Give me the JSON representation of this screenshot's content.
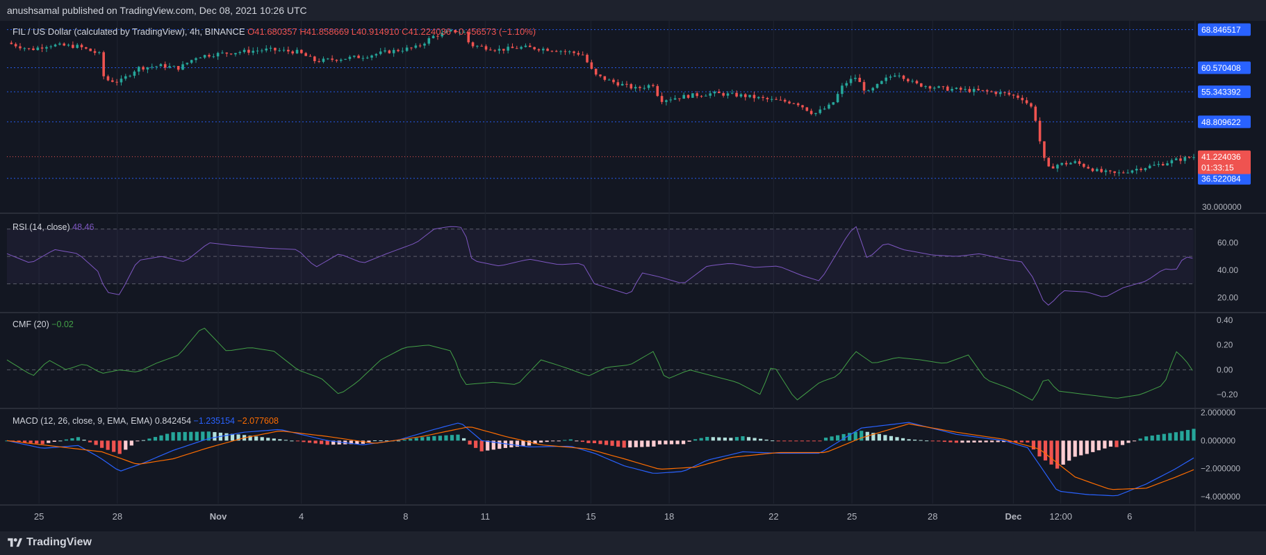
{
  "header": {
    "publisher_text": "anushsamal published on TradingView.com, Dec 08, 2021 10:26 UTC"
  },
  "footer": {
    "brand": "TradingView",
    "logo_icon": "tradingview-logo-icon"
  },
  "colors": {
    "bg": "#131722",
    "up": "#26a69a",
    "down": "#ef5350",
    "level_line": "#2962ff",
    "rsi": "#7e57c2",
    "cmf": "#43a047",
    "macd_line": "#2962ff",
    "signal_line": "#ff6d00"
  },
  "main": {
    "legend": {
      "symbol": "FIL / US Dollar (calculated by TradingView), 4h, BINANCE",
      "open": "O41.680357",
      "high": "H41.858669",
      "low": "L40.914910",
      "close": "C41.224036",
      "change": "−0.456573 (−1.10%)"
    },
    "currency": "USD",
    "price_tags": [
      {
        "label": "68.846517",
        "value": 68.846517,
        "color": "#2962ff"
      },
      {
        "label": "60.570408",
        "value": 60.570408,
        "color": "#2962ff"
      },
      {
        "label": "55.343392",
        "value": 55.343392,
        "color": "#2962ff"
      },
      {
        "label": "48.809622",
        "value": 48.809622,
        "color": "#2962ff"
      },
      {
        "label": "36.522084",
        "value": 36.522084,
        "color": "#2962ff"
      }
    ],
    "last_price": {
      "label": "41.224036",
      "countdown": "01:33:15",
      "value": 41.224036
    },
    "axis_ticks": [
      "30.000000"
    ]
  },
  "rsi": {
    "legend": "RSI (14, close)",
    "value": "48.46",
    "ticks": [
      "60.00",
      "40.00",
      "20.00"
    ]
  },
  "cmf": {
    "legend": "CMF (20)",
    "value": "−0.02",
    "ticks": [
      "0.40",
      "0.20",
      "0.00",
      "−0.20"
    ]
  },
  "macd": {
    "legend": "MACD (12, 26, close, 9, EMA, EMA)",
    "hist_value": "0.842454",
    "macd_value": "−1.235154",
    "signal_value": "−2.077608",
    "ticks": [
      "2.000000",
      "0.000000",
      "−2.000000",
      "−4.000000"
    ]
  },
  "x_axis": {
    "labels": [
      "25",
      "28",
      "Nov",
      "4",
      "8",
      "11",
      "15",
      "18",
      "22",
      "25",
      "28",
      "Dec",
      "12:00",
      "6"
    ],
    "bold": [
      "Nov",
      "Dec"
    ]
  },
  "chart_data": [
    {
      "type": "candlestick",
      "title": "FIL / US Dollar, 4h, BINANCE",
      "ylim": [
        30,
        70
      ],
      "x_start": "Oct 24",
      "x_end": "Dec 8",
      "close_path": [
        {
          "t": 0.0,
          "v": 66.0
        },
        {
          "t": 2.0,
          "v": 64.5
        },
        {
          "t": 3.5,
          "v": 65.5
        },
        {
          "t": 6.0,
          "v": 65.2
        },
        {
          "t": 7.8,
          "v": 63.5
        },
        {
          "t": 8.2,
          "v": 58.0
        },
        {
          "t": 9.5,
          "v": 57.5
        },
        {
          "t": 11.0,
          "v": 60.5
        },
        {
          "t": 13.0,
          "v": 61.0
        },
        {
          "t": 14.5,
          "v": 60.5
        },
        {
          "t": 16.0,
          "v": 63.0
        },
        {
          "t": 17.5,
          "v": 63.5
        },
        {
          "t": 19.5,
          "v": 64.0
        },
        {
          "t": 22.0,
          "v": 64.5
        },
        {
          "t": 24.5,
          "v": 64.0
        },
        {
          "t": 26.0,
          "v": 62.0
        },
        {
          "t": 28.0,
          "v": 62.5
        },
        {
          "t": 30.0,
          "v": 63.0
        },
        {
          "t": 32.0,
          "v": 64.0
        },
        {
          "t": 34.5,
          "v": 65.0
        },
        {
          "t": 36.0,
          "v": 67.5
        },
        {
          "t": 37.5,
          "v": 68.5
        },
        {
          "t": 38.5,
          "v": 68.3
        },
        {
          "t": 39.0,
          "v": 65.5
        },
        {
          "t": 41.5,
          "v": 64.5
        },
        {
          "t": 43.5,
          "v": 65.0
        },
        {
          "t": 46.0,
          "v": 64.5
        },
        {
          "t": 48.5,
          "v": 63.5
        },
        {
          "t": 49.5,
          "v": 59.0
        },
        {
          "t": 51.0,
          "v": 57.5
        },
        {
          "t": 53.0,
          "v": 56.0
        },
        {
          "t": 54.5,
          "v": 57.0
        },
        {
          "t": 55.0,
          "v": 53.5
        },
        {
          "t": 57.5,
          "v": 54.5
        },
        {
          "t": 59.5,
          "v": 55.0
        },
        {
          "t": 62.0,
          "v": 54.5
        },
        {
          "t": 64.5,
          "v": 53.5
        },
        {
          "t": 66.5,
          "v": 53.0
        },
        {
          "t": 68.0,
          "v": 50.5
        },
        {
          "t": 69.5,
          "v": 52.5
        },
        {
          "t": 70.5,
          "v": 57.0
        },
        {
          "t": 71.5,
          "v": 58.5
        },
        {
          "t": 72.5,
          "v": 55.0
        },
        {
          "t": 74.0,
          "v": 58.0
        },
        {
          "t": 75.0,
          "v": 59.5
        },
        {
          "t": 76.5,
          "v": 57.0
        },
        {
          "t": 79.0,
          "v": 56.0
        },
        {
          "t": 82.0,
          "v": 55.5
        },
        {
          "t": 84.0,
          "v": 55.0
        },
        {
          "t": 85.5,
          "v": 54.0
        },
        {
          "t": 86.5,
          "v": 51.5
        },
        {
          "t": 87.0,
          "v": 45.0
        },
        {
          "t": 87.6,
          "v": 38.5
        },
        {
          "t": 88.5,
          "v": 39.5
        },
        {
          "t": 90.0,
          "v": 40.0
        },
        {
          "t": 92.0,
          "v": 38.0
        },
        {
          "t": 93.5,
          "v": 37.5
        },
        {
          "t": 95.0,
          "v": 38.5
        },
        {
          "t": 97.0,
          "v": 39.5
        },
        {
          "t": 98.5,
          "v": 40.5
        },
        {
          "t": 100.0,
          "v": 41.2
        }
      ],
      "levels": [
        68.846517,
        60.570408,
        55.343392,
        48.809622,
        36.522084
      ]
    },
    {
      "type": "line",
      "name": "RSI (14, close)",
      "ylim": [
        10,
        80
      ],
      "bands": [
        30,
        50,
        70
      ],
      "points": [
        {
          "t": 0,
          "v": 52
        },
        {
          "t": 2,
          "v": 45
        },
        {
          "t": 4,
          "v": 55
        },
        {
          "t": 6,
          "v": 52
        },
        {
          "t": 7.8,
          "v": 38
        },
        {
          "t": 8.3,
          "v": 24
        },
        {
          "t": 9.5,
          "v": 22
        },
        {
          "t": 11,
          "v": 47
        },
        {
          "t": 13,
          "v": 50
        },
        {
          "t": 15,
          "v": 46
        },
        {
          "t": 17,
          "v": 60
        },
        {
          "t": 19,
          "v": 58
        },
        {
          "t": 22,
          "v": 56
        },
        {
          "t": 24.5,
          "v": 55
        },
        {
          "t": 26,
          "v": 42
        },
        {
          "t": 28,
          "v": 52
        },
        {
          "t": 30,
          "v": 45
        },
        {
          "t": 32,
          "v": 52
        },
        {
          "t": 34.5,
          "v": 60
        },
        {
          "t": 36,
          "v": 70
        },
        {
          "t": 37.5,
          "v": 72
        },
        {
          "t": 38.5,
          "v": 71
        },
        {
          "t": 39.2,
          "v": 47
        },
        {
          "t": 41.5,
          "v": 43
        },
        {
          "t": 44,
          "v": 48
        },
        {
          "t": 46.5,
          "v": 44
        },
        {
          "t": 48.5,
          "v": 45
        },
        {
          "t": 49.5,
          "v": 30
        },
        {
          "t": 51,
          "v": 26
        },
        {
          "t": 52.5,
          "v": 22
        },
        {
          "t": 53.5,
          "v": 38
        },
        {
          "t": 55,
          "v": 35
        },
        {
          "t": 57,
          "v": 30
        },
        {
          "t": 59,
          "v": 43
        },
        {
          "t": 61,
          "v": 45
        },
        {
          "t": 63,
          "v": 42
        },
        {
          "t": 65,
          "v": 43
        },
        {
          "t": 67,
          "v": 36
        },
        {
          "t": 68.5,
          "v": 32
        },
        {
          "t": 69.5,
          "v": 46
        },
        {
          "t": 70.8,
          "v": 65
        },
        {
          "t": 71.5,
          "v": 73
        },
        {
          "t": 72.5,
          "v": 48
        },
        {
          "t": 74,
          "v": 60
        },
        {
          "t": 75.5,
          "v": 55
        },
        {
          "t": 78,
          "v": 51
        },
        {
          "t": 80,
          "v": 50
        },
        {
          "t": 82,
          "v": 52
        },
        {
          "t": 84,
          "v": 48
        },
        {
          "t": 85.5,
          "v": 46
        },
        {
          "t": 86.5,
          "v": 34
        },
        {
          "t": 87.3,
          "v": 18
        },
        {
          "t": 87.8,
          "v": 14
        },
        {
          "t": 89,
          "v": 25
        },
        {
          "t": 91,
          "v": 24
        },
        {
          "t": 92.5,
          "v": 20
        },
        {
          "t": 94,
          "v": 27
        },
        {
          "t": 96,
          "v": 32
        },
        {
          "t": 97.5,
          "v": 41
        },
        {
          "t": 98.5,
          "v": 40
        },
        {
          "t": 99.2,
          "v": 50
        },
        {
          "t": 100,
          "v": 48.46
        }
      ]
    },
    {
      "type": "line",
      "name": "CMF (20)",
      "ylim": [
        -0.3,
        0.45
      ],
      "zero_line": 0,
      "points": [
        {
          "t": 0,
          "v": 0.08
        },
        {
          "t": 2.2,
          "v": -0.05
        },
        {
          "t": 3.5,
          "v": 0.08
        },
        {
          "t": 5,
          "v": 0.0
        },
        {
          "t": 6.5,
          "v": 0.05
        },
        {
          "t": 8,
          "v": -0.03
        },
        {
          "t": 9.5,
          "v": 0.0
        },
        {
          "t": 11,
          "v": -0.02
        },
        {
          "t": 12.5,
          "v": 0.05
        },
        {
          "t": 14.5,
          "v": 0.12
        },
        {
          "t": 16.5,
          "v": 0.35
        },
        {
          "t": 18.5,
          "v": 0.15
        },
        {
          "t": 20.5,
          "v": 0.18
        },
        {
          "t": 22.5,
          "v": 0.15
        },
        {
          "t": 24.5,
          "v": 0.0
        },
        {
          "t": 26.5,
          "v": -0.07
        },
        {
          "t": 28,
          "v": -0.2
        },
        {
          "t": 29.5,
          "v": -0.1
        },
        {
          "t": 31.5,
          "v": 0.08
        },
        {
          "t": 33.5,
          "v": 0.18
        },
        {
          "t": 35.5,
          "v": 0.2
        },
        {
          "t": 37.5,
          "v": 0.15
        },
        {
          "t": 38.5,
          "v": -0.12
        },
        {
          "t": 41,
          "v": -0.1
        },
        {
          "t": 43,
          "v": -0.12
        },
        {
          "t": 45,
          "v": 0.08
        },
        {
          "t": 47,
          "v": 0.02
        },
        {
          "t": 49,
          "v": -0.05
        },
        {
          "t": 50.5,
          "v": 0.02
        },
        {
          "t": 52.5,
          "v": 0.04
        },
        {
          "t": 54.5,
          "v": 0.15
        },
        {
          "t": 55.5,
          "v": -0.08
        },
        {
          "t": 57.5,
          "v": 0.0
        },
        {
          "t": 59.5,
          "v": -0.05
        },
        {
          "t": 61.5,
          "v": -0.1
        },
        {
          "t": 63.5,
          "v": -0.2
        },
        {
          "t": 64.5,
          "v": 0.05
        },
        {
          "t": 66.5,
          "v": -0.25
        },
        {
          "t": 68.5,
          "v": -0.1
        },
        {
          "t": 70,
          "v": -0.05
        },
        {
          "t": 71.5,
          "v": 0.15
        },
        {
          "t": 73,
          "v": 0.05
        },
        {
          "t": 75,
          "v": 0.1
        },
        {
          "t": 77,
          "v": 0.08
        },
        {
          "t": 79,
          "v": 0.05
        },
        {
          "t": 81,
          "v": 0.12
        },
        {
          "t": 82.5,
          "v": -0.08
        },
        {
          "t": 84.5,
          "v": -0.15
        },
        {
          "t": 86.5,
          "v": -0.25
        },
        {
          "t": 87.5,
          "v": -0.05
        },
        {
          "t": 88.5,
          "v": -0.17
        },
        {
          "t": 91,
          "v": -0.2
        },
        {
          "t": 93.5,
          "v": -0.23
        },
        {
          "t": 95.5,
          "v": -0.2
        },
        {
          "t": 97.5,
          "v": -0.12
        },
        {
          "t": 98.5,
          "v": 0.15
        },
        {
          "t": 99.3,
          "v": 0.08
        },
        {
          "t": 100,
          "v": -0.02
        }
      ]
    },
    {
      "type": "line",
      "name": "MACD (12, 26, close, 9, EMA, EMA)",
      "ylim": [
        -4.5,
        2.2
      ],
      "series": [
        {
          "name": "MACD",
          "points": [
            {
              "t": 0,
              "v": 0.0
            },
            {
              "t": 3,
              "v": -0.55
            },
            {
              "t": 6,
              "v": -0.35
            },
            {
              "t": 7.8,
              "v": -1.2
            },
            {
              "t": 9.5,
              "v": -2.2
            },
            {
              "t": 11.5,
              "v": -1.6
            },
            {
              "t": 14,
              "v": -0.7
            },
            {
              "t": 17,
              "v": 0.15
            },
            {
              "t": 20,
              "v": 0.6
            },
            {
              "t": 23,
              "v": 0.8
            },
            {
              "t": 27,
              "v": 0.0
            },
            {
              "t": 30,
              "v": -0.3
            },
            {
              "t": 33,
              "v": 0.05
            },
            {
              "t": 36,
              "v": 0.8
            },
            {
              "t": 38.2,
              "v": 1.3
            },
            {
              "t": 40,
              "v": 0.0
            },
            {
              "t": 44,
              "v": -0.45
            },
            {
              "t": 47.5,
              "v": -0.4
            },
            {
              "t": 49.5,
              "v": -0.9
            },
            {
              "t": 52,
              "v": -1.8
            },
            {
              "t": 54.5,
              "v": -2.35
            },
            {
              "t": 57,
              "v": -2.2
            },
            {
              "t": 59,
              "v": -1.4
            },
            {
              "t": 62,
              "v": -0.8
            },
            {
              "t": 65,
              "v": -0.9
            },
            {
              "t": 68.5,
              "v": -0.9
            },
            {
              "t": 70.8,
              "v": 0.3
            },
            {
              "t": 72,
              "v": 0.9
            },
            {
              "t": 76,
              "v": 1.3
            },
            {
              "t": 80,
              "v": 0.45
            },
            {
              "t": 84,
              "v": 0.0
            },
            {
              "t": 86,
              "v": -0.5
            },
            {
              "t": 87.3,
              "v": -2.1
            },
            {
              "t": 88.5,
              "v": -3.6
            },
            {
              "t": 91,
              "v": -3.85
            },
            {
              "t": 93.5,
              "v": -3.95
            },
            {
              "t": 96,
              "v": -3.1
            },
            {
              "t": 98.5,
              "v": -2.0
            },
            {
              "t": 100,
              "v": -1.235154
            }
          ]
        },
        {
          "name": "Signal",
          "points": [
            {
              "t": 0,
              "v": 0.0
            },
            {
              "t": 4,
              "v": -0.4
            },
            {
              "t": 8,
              "v": -0.8
            },
            {
              "t": 11,
              "v": -1.7
            },
            {
              "t": 14,
              "v": -1.3
            },
            {
              "t": 17,
              "v": -0.5
            },
            {
              "t": 20,
              "v": 0.2
            },
            {
              "t": 23,
              "v": 0.7
            },
            {
              "t": 27,
              "v": 0.3
            },
            {
              "t": 31,
              "v": -0.2
            },
            {
              "t": 35,
              "v": 0.3
            },
            {
              "t": 39,
              "v": 1.0
            },
            {
              "t": 42,
              "v": 0.3
            },
            {
              "t": 45,
              "v": -0.3
            },
            {
              "t": 49,
              "v": -0.6
            },
            {
              "t": 52,
              "v": -1.3
            },
            {
              "t": 55,
              "v": -2.05
            },
            {
              "t": 58,
              "v": -1.9
            },
            {
              "t": 61,
              "v": -1.2
            },
            {
              "t": 65,
              "v": -0.85
            },
            {
              "t": 69,
              "v": -0.85
            },
            {
              "t": 72,
              "v": 0.2
            },
            {
              "t": 76,
              "v": 1.2
            },
            {
              "t": 80,
              "v": 0.6
            },
            {
              "t": 84,
              "v": 0.1
            },
            {
              "t": 87,
              "v": -0.6
            },
            {
              "t": 90,
              "v": -2.6
            },
            {
              "t": 93,
              "v": -3.5
            },
            {
              "t": 96,
              "v": -3.4
            },
            {
              "t": 98.5,
              "v": -2.6
            },
            {
              "t": 100,
              "v": -2.077608
            }
          ]
        }
      ]
    }
  ]
}
